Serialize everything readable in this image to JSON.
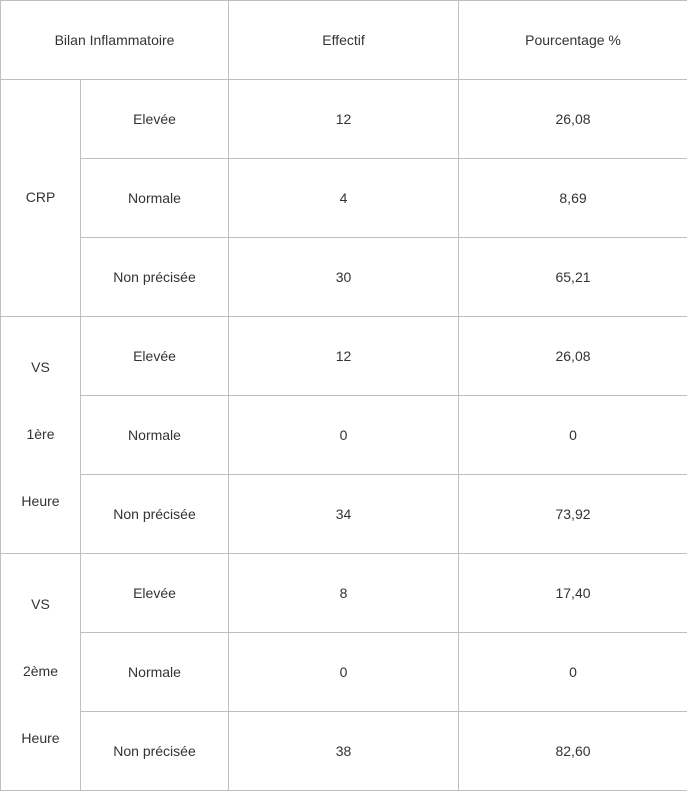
{
  "table": {
    "type": "table",
    "background_color": "#ffffff",
    "border_color": "#bfbfbf",
    "text_color": "#333333",
    "font_size_pt": 11,
    "columns": [
      {
        "label": "Bilan Inflammatoire",
        "span": 2
      },
      {
        "label": "Effectif"
      },
      {
        "label": "Pourcentage %"
      }
    ],
    "groups": [
      {
        "label": "CRP",
        "rows": [
          {
            "level": "Elevée",
            "effectif": "12",
            "pourcentage": "26,08"
          },
          {
            "level": "Normale",
            "effectif": "4",
            "pourcentage": "8,69"
          },
          {
            "level": "Non précisée",
            "effectif": "30",
            "pourcentage": "65,21"
          }
        ]
      },
      {
        "label": "VS\n\n1ère\n\nHeure",
        "rows": [
          {
            "level": "Elevée",
            "effectif": "12",
            "pourcentage": "26,08"
          },
          {
            "level": "Normale",
            "effectif": "0",
            "pourcentage": "0"
          },
          {
            "level": "Non précisée",
            "effectif": "34",
            "pourcentage": "73,92"
          }
        ]
      },
      {
        "label": "VS\n\n2ème\n\nHeure",
        "rows": [
          {
            "level": "Elevée",
            "effectif": "8",
            "pourcentage": "17,40"
          },
          {
            "level": "Normale",
            "effectif": "0",
            "pourcentage": "0"
          },
          {
            "level": "Non précisée",
            "effectif": "38",
            "pourcentage": "82,60"
          }
        ]
      }
    ]
  }
}
